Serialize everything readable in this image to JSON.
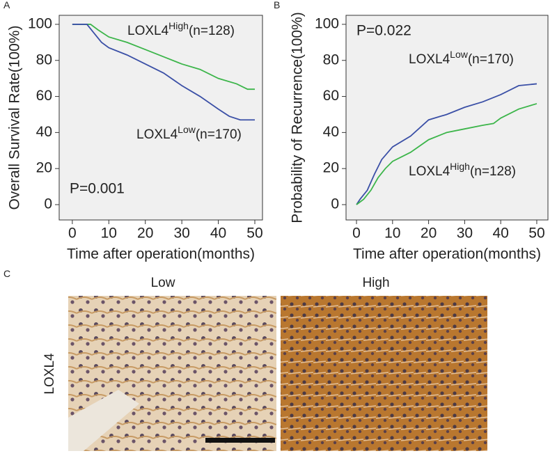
{
  "chart_data": [
    {
      "type": "line",
      "panel": "A",
      "ylabel": "Overall Survival Rate(100%)",
      "xlabel": "Time after operation(months)",
      "xlim": [
        -3.6,
        52.1
      ],
      "ylim": [
        -8.5,
        105
      ],
      "xticks": [
        0,
        10,
        20,
        30,
        40,
        50
      ],
      "yticks": [
        0,
        20,
        40,
        60,
        80,
        100
      ],
      "series": [
        {
          "name": {
            "base": "LOXL4",
            "sup": "High",
            "rest": "(n=128)"
          },
          "color": "#3cb54a",
          "x": [
            0,
            5,
            7,
            10,
            15,
            20,
            25,
            30,
            35,
            40,
            45,
            48,
            50
          ],
          "values": [
            100,
            100,
            97,
            93,
            90,
            86,
            82,
            78,
            75,
            70,
            67,
            64,
            64
          ]
        },
        {
          "name": {
            "base": "LOXL4",
            "sup": "Low",
            "rest": "(n=170)"
          },
          "color": "#3a4fa6",
          "x": [
            0,
            4,
            6,
            8,
            10,
            15,
            20,
            25,
            30,
            35,
            40,
            43,
            46,
            50
          ],
          "values": [
            100,
            100,
            95,
            90,
            87,
            83,
            78,
            73,
            66,
            60,
            53,
            49,
            47,
            47
          ]
        }
      ],
      "annotation": "P=0.001"
    },
    {
      "type": "line",
      "panel": "B",
      "ylabel": "Probability of Recurrence(100%)",
      "xlabel": "Time after operation(months)",
      "xlim": [
        -2.9,
        53.1
      ],
      "ylim": [
        -8.5,
        105
      ],
      "xticks": [
        0,
        10,
        20,
        30,
        40,
        50
      ],
      "yticks": [
        0,
        20,
        40,
        60,
        80,
        100
      ],
      "series": [
        {
          "name": {
            "base": "LOXL4",
            "sup": "Low",
            "rest": "(n=170)"
          },
          "color": "#3a4fa6",
          "x": [
            0,
            1,
            3,
            5,
            7,
            10,
            15,
            20,
            25,
            30,
            35,
            40,
            45,
            50
          ],
          "values": [
            0,
            3,
            8,
            17,
            25,
            32,
            38,
            47,
            50,
            54,
            57,
            61,
            66,
            67
          ]
        },
        {
          "name": {
            "base": "LOXL4",
            "sup": "High",
            "rest": "(n=128)"
          },
          "color": "#3cb54a",
          "x": [
            0,
            2,
            4,
            6,
            8,
            10,
            15,
            20,
            25,
            30,
            35,
            38,
            40,
            45,
            50
          ],
          "values": [
            0,
            3,
            8,
            15,
            20,
            24,
            29,
            36,
            40,
            42,
            44,
            45,
            48,
            53,
            56
          ]
        }
      ],
      "annotation": "P=0.022"
    }
  ],
  "panel_c": {
    "panel": "C",
    "columns": [
      "Low",
      "High"
    ],
    "row_label": "LOXL4"
  }
}
